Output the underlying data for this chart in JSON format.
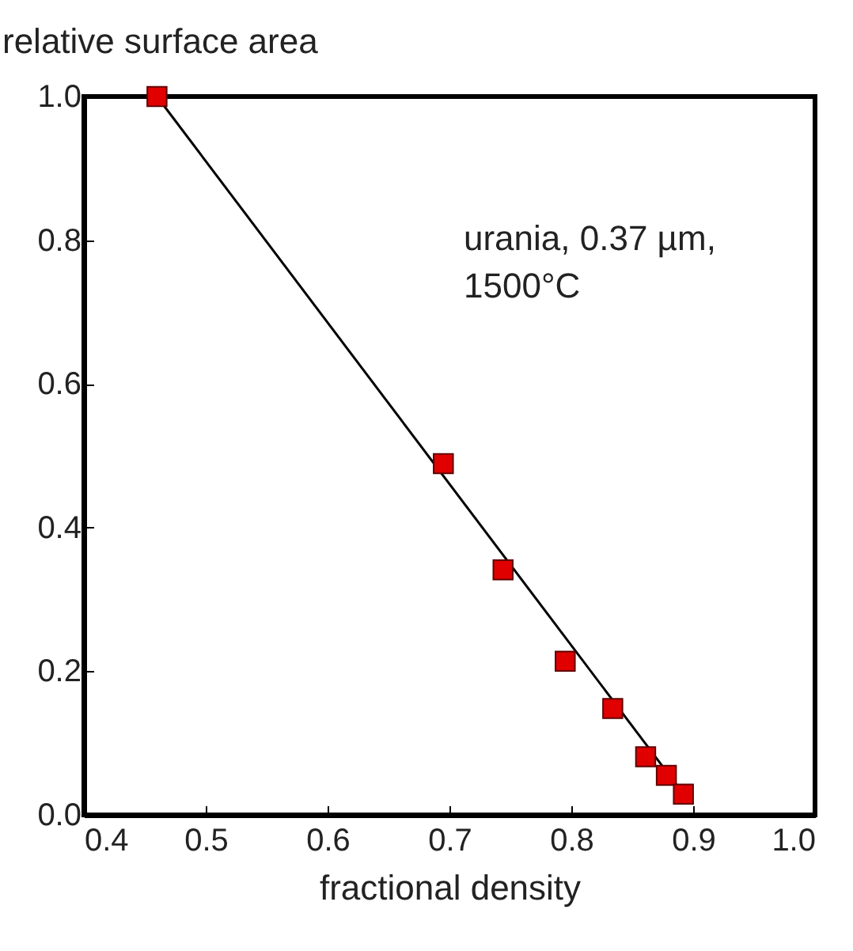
{
  "chart_data": {
    "type": "scatter",
    "xlabel": "fractional density",
    "ylabel": "relative surface area",
    "annotations": [
      "urania, 0.37 µm,",
      "1500°C"
    ],
    "series": [
      {
        "color": "#e00000",
        "marker": "square",
        "x": [
          0.46,
          0.695,
          0.744,
          0.795,
          0.834,
          0.861,
          0.878,
          0.892
        ],
        "values": [
          1.0,
          0.489,
          0.341,
          0.214,
          0.148,
          0.081,
          0.055,
          0.029
        ]
      },
      {
        "type": "line",
        "color": "#000000",
        "marker": "none",
        "x": [
          0.46,
          0.897
        ],
        "values": [
          1.0,
          0.018
        ]
      }
    ],
    "xlim": [
      0.4,
      1.0
    ],
    "xticks": [
      0.4,
      0.5,
      0.6,
      0.7,
      0.8,
      0.9,
      {
        "value": 1.0,
        "label": "1.0"
      }
    ],
    "ylim": [
      0.0,
      1.0
    ],
    "yticks": [
      {
        "value": 0,
        "label": "0.0"
      },
      0.2,
      0.4,
      0.6,
      0.8,
      {
        "value": 1.0,
        "label": "1.0"
      }
    ],
    "grid": false
  }
}
